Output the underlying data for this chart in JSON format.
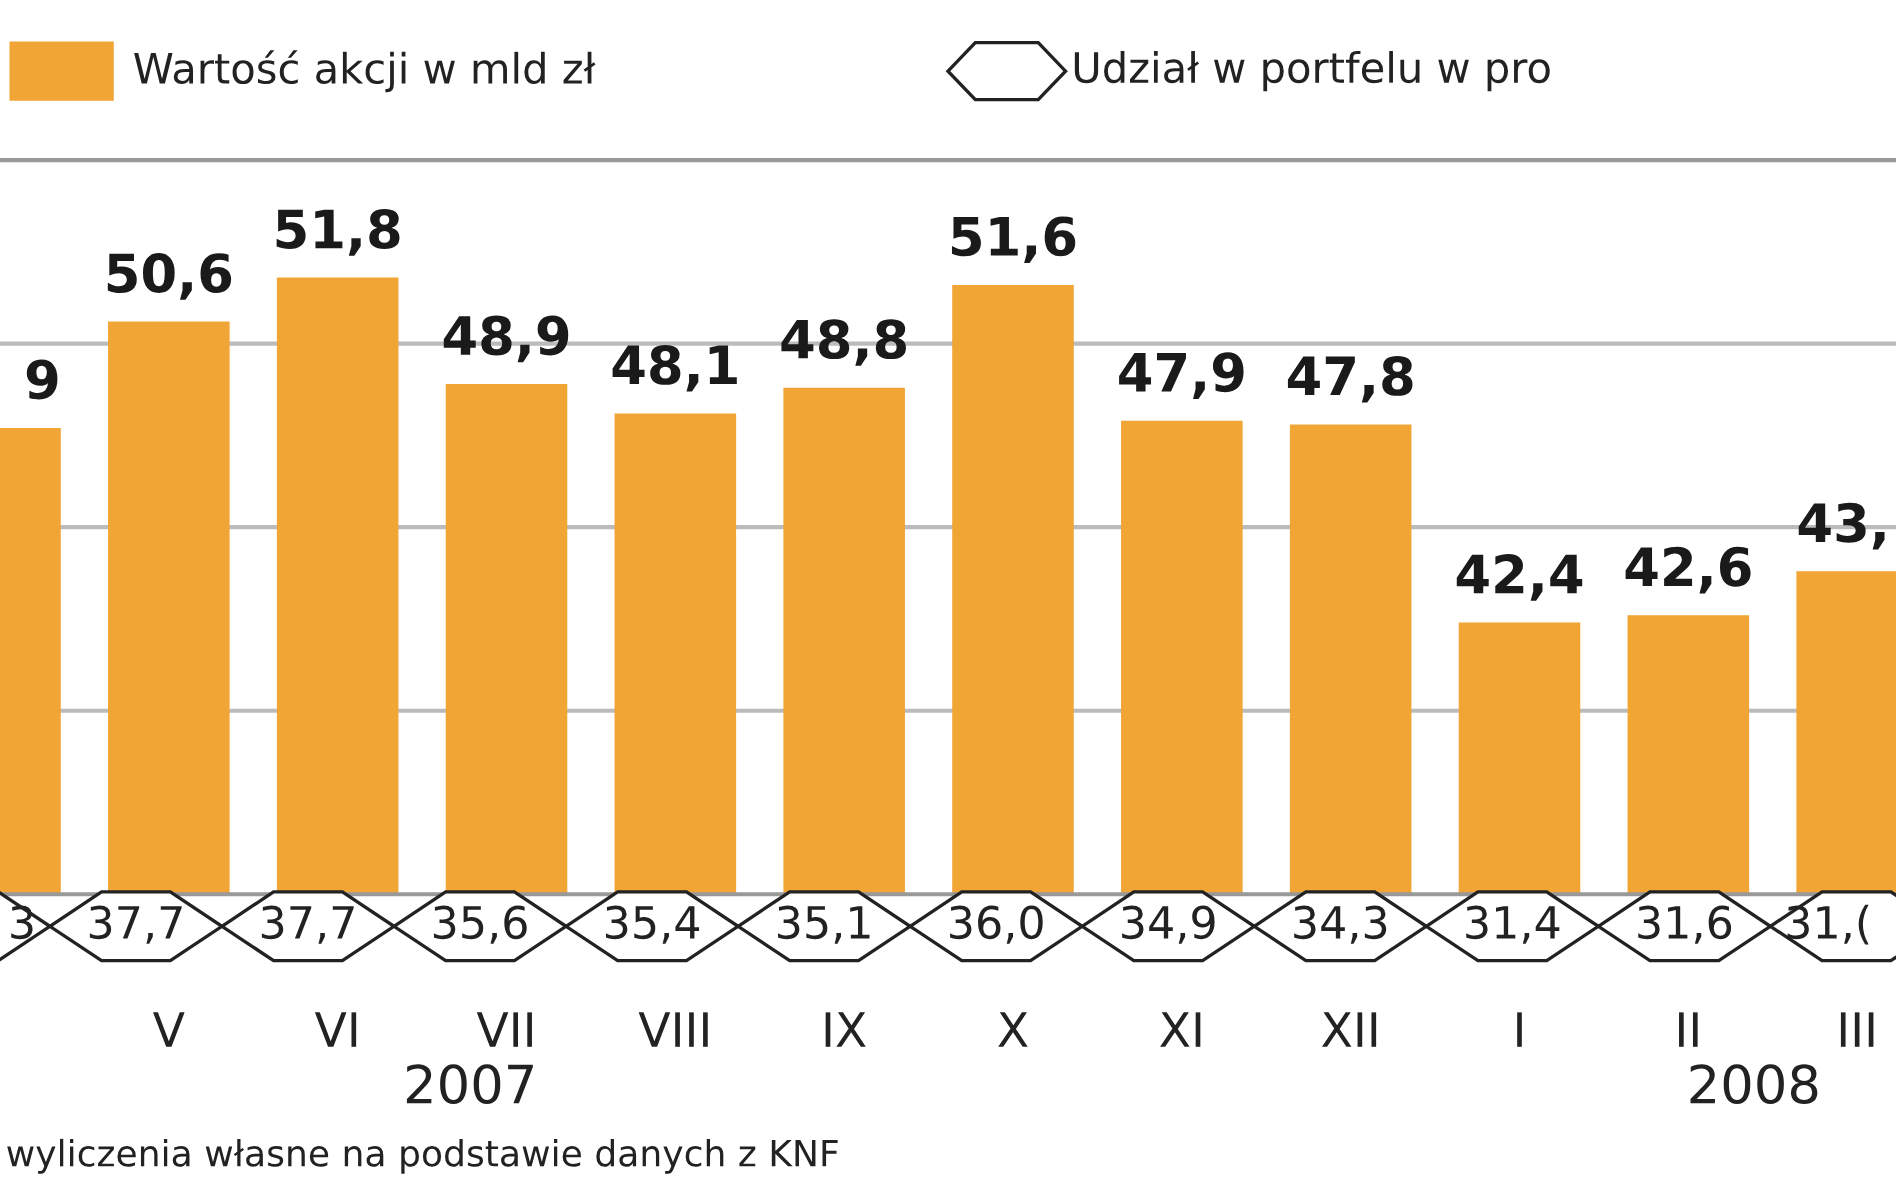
{
  "chart_data": [
    {
      "type": "bar",
      "categories": [
        null,
        "V",
        "VI",
        "VII",
        "VIII",
        "IX",
        "X",
        "XI",
        "XII",
        "I",
        "II",
        "III"
      ],
      "series": [
        {
          "name": "Wartość akcji w mld zł",
          "color": "#f0a535",
          "values": [
            47.7,
            50.6,
            51.8,
            48.9,
            48.1,
            48.8,
            51.6,
            47.9,
            47.8,
            42.4,
            42.6,
            43.8
          ],
          "value_labels": [
            null,
            "50,6",
            "51,8",
            "48,9",
            "48,1",
            "48,8",
            "51,6",
            "47,9",
            "47,8",
            "42,4",
            "42,6",
            null
          ]
        }
      ],
      "ylim": [
        35,
        55
      ],
      "yticks": [
        {
          "value": 40,
          "label": null
        },
        {
          "value": 45,
          "label": null
        },
        {
          "value": 50,
          "label": null
        }
      ],
      "grid": "y",
      "legend": "top left",
      "tick_labels": "x",
      "annotations": [
        "9",
        "43,"
      ]
    },
    {
      "type": "other",
      "series": [
        {
          "name": "Udział w portfelu w pro",
          "color": "#222222",
          "values": [
            null,
            37.7,
            37.7,
            35.6,
            35.4,
            35.1,
            36.0,
            34.9,
            34.3,
            31.4,
            31.6,
            null
          ],
          "value_labels": [
            null,
            "37,7",
            "37,7",
            "35,6",
            "35,4",
            "35,1",
            "36,0",
            "34,9",
            "34,3",
            "31,4",
            "31,6",
            null
          ]
        }
      ],
      "legend": "top right",
      "annotations": [
        "3",
        "31,(",
        "2007",
        "2008",
        "wyliczenia własne na podstawie danych z KNF"
      ]
    }
  ]
}
